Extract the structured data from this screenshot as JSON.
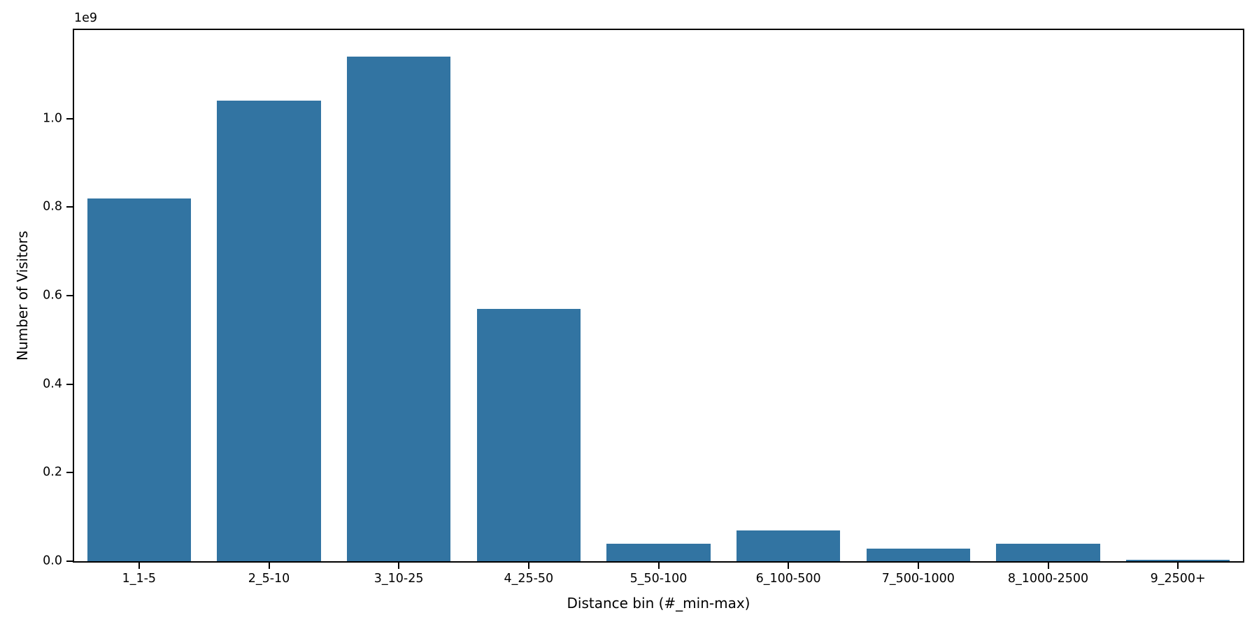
{
  "chart_data": {
    "type": "bar",
    "xlabel": "Distance bin (#_min-max)",
    "ylabel": "Number of Visitors",
    "y_offset_text": "1e9",
    "categories": [
      "1_1-5",
      "2_5-10",
      "3_10-25",
      "4_25-50",
      "5_50-100",
      "6_100-500",
      "7_500-1000",
      "8_1000-2500",
      "9_2500+"
    ],
    "values": [
      820000000,
      1040000000,
      1140000000,
      570000000,
      40000000,
      70000000,
      28000000,
      40000000,
      3000000
    ],
    "values_e9": [
      0.82,
      1.04,
      1.14,
      0.57,
      0.04,
      0.07,
      0.028,
      0.04,
      0.003
    ],
    "ylim_e9": [
      0,
      1.2
    ],
    "ytick_values_e9": [
      0.0,
      0.2,
      0.4,
      0.6,
      0.8,
      1.0
    ],
    "ytick_labels": [
      "0.0",
      "0.2",
      "0.4",
      "0.6",
      "0.8",
      "1.0"
    ],
    "bar_width_fraction": 0.8,
    "bar_color": "#3274A2",
    "axis_color": "#000000",
    "background_color": "#FFFFFF",
    "grid": false,
    "legend": "none"
  }
}
